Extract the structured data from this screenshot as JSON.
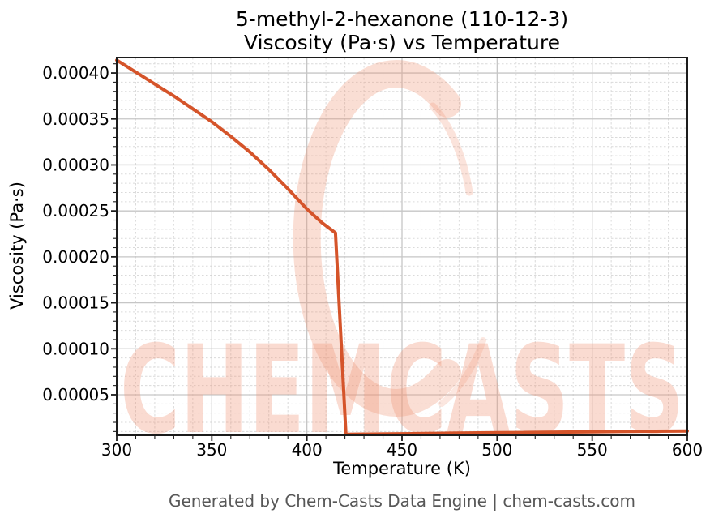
{
  "figure": {
    "title_line1": "5-methyl-2-hexanone (110-12-3)",
    "title_line2": "Viscosity (Pa·s) vs Temperature",
    "footer": "Generated by Chem-Casts Data Engine | chem-casts.com"
  },
  "chart_data": {
    "type": "line",
    "title": "5-methyl-2-hexanone (110-12-3) — Viscosity (Pa·s) vs Temperature",
    "xlabel": "Temperature (K)",
    "ylabel": "Viscosity (Pa·s)",
    "xlim": [
      300,
      600
    ],
    "ylim": [
      5.9e-06,
      0.0004168
    ],
    "x_ticks": [
      300,
      350,
      400,
      450,
      500,
      550,
      600
    ],
    "x_tick_labels": [
      "300",
      "350",
      "400",
      "450",
      "500",
      "550",
      "600"
    ],
    "x_minor_step": 10,
    "y_ticks": [
      5e-05,
      0.0001,
      0.00015,
      0.0002,
      0.00025,
      0.0003,
      0.00035,
      0.0004
    ],
    "y_tick_labels": [
      "0.00005",
      "0.00010",
      "0.00015",
      "0.00020",
      "0.00025",
      "0.00030",
      "0.00035",
      "0.00040"
    ],
    "y_minor_step": 1e-05,
    "grid": true,
    "legend": "none",
    "series": [
      {
        "name": "viscosity",
        "color": "#d5542a",
        "x": [
          300,
          310,
          320,
          330,
          340,
          350,
          360,
          370,
          380,
          390,
          400,
          408,
          415,
          420.5,
          430,
          450,
          475,
          500,
          525,
          550,
          575,
          600
        ],
        "y": [
          0.000414,
          0.000401,
          0.000388,
          0.000375,
          0.000361,
          0.000347,
          0.000331,
          0.000314,
          0.000295,
          0.000274,
          0.000252,
          0.000237,
          0.000226,
          7e-06,
          7.2e-06,
          7.6e-06,
          8.2e-06,
          8.7e-06,
          9.2e-06,
          9.7e-06,
          1.02e-05,
          1.06e-05
        ]
      }
    ],
    "watermark": {
      "text": "CHEMCASTS",
      "logo": "c-swirl-icon",
      "color": "#f09272"
    }
  },
  "colors": {
    "line": "#d5542a",
    "grid_major": "#c6c6c6",
    "grid_minor": "#dadada",
    "spine": "#1c1c1c",
    "tick_label": "#000000",
    "footer_text": "#575757",
    "watermark": "#f09272",
    "background": "#ffffff"
  }
}
